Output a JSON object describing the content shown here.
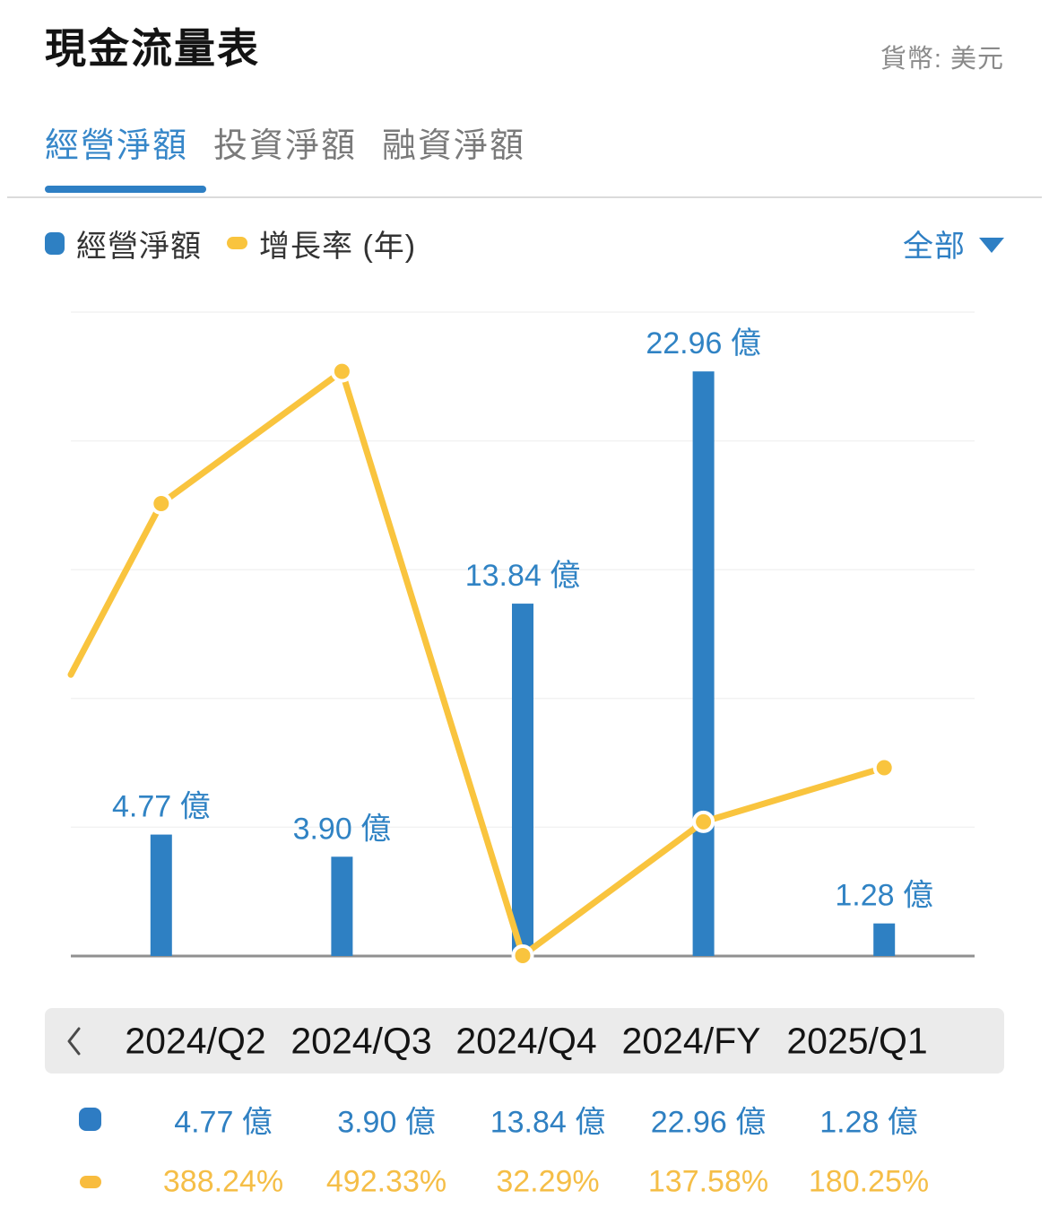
{
  "header": {
    "title": "現金流量表",
    "currency_label": "貨幣: 美元"
  },
  "tabs": {
    "items": [
      {
        "label": "經營淨額",
        "active": true
      },
      {
        "label": "投資淨額",
        "active": false
      },
      {
        "label": "融資淨額",
        "active": false
      }
    ]
  },
  "legend": {
    "bar_label": "經營淨額",
    "line_label": "增長率 (年)",
    "range_label": "全部"
  },
  "colors": {
    "bar_blue": "#2E80C3",
    "value_text_blue": "#3083C4",
    "line_yellow": "#F9C43E",
    "dot_ring": "#FFFFFF",
    "grid": "#F2F2F2",
    "axis": "#909090",
    "band_bg": "#EBEBEB",
    "table_yellow": "#F5BE47"
  },
  "chart_data": {
    "type": "combo",
    "categories": [
      "2024/Q2",
      "2024/Q3",
      "2024/Q4",
      "2024/FY",
      "2025/Q1"
    ],
    "series": [
      {
        "name": "經營淨額",
        "type": "bar",
        "unit": "億",
        "values": [
          4.77,
          3.9,
          13.84,
          22.96,
          1.28
        ],
        "labels": [
          "4.77 億",
          "3.90 億",
          "13.84 億",
          "22.96 億",
          "1.28 億"
        ]
      },
      {
        "name": "增長率 (年)",
        "type": "line",
        "unit": "%",
        "values": [
          388.24,
          492.33,
          32.29,
          137.58,
          180.25
        ],
        "labels": [
          "388.24%",
          "492.33%",
          "32.29%",
          "137.58%",
          "180.25%"
        ],
        "enters_from_left_at_pct": 253.5
      }
    ],
    "bar_axis": {
      "min": 0,
      "max_at_top_gridline": 25.29
    },
    "line_axis": {
      "min_at_baseline": 31.9,
      "max_at_top_gridline": 539
    },
    "grid": {
      "horizontal_lines": 6,
      "vertical": false
    },
    "legend_position": "top-left",
    "value_labels": "above-bars",
    "y_tick_labels": "none"
  },
  "table": {
    "bar_row": [
      "4.77 億",
      "3.90 億",
      "13.84 億",
      "22.96 億",
      "1.28 億"
    ],
    "growth_row": [
      "388.24%",
      "492.33%",
      "32.29%",
      "137.58%",
      "180.25%"
    ]
  }
}
